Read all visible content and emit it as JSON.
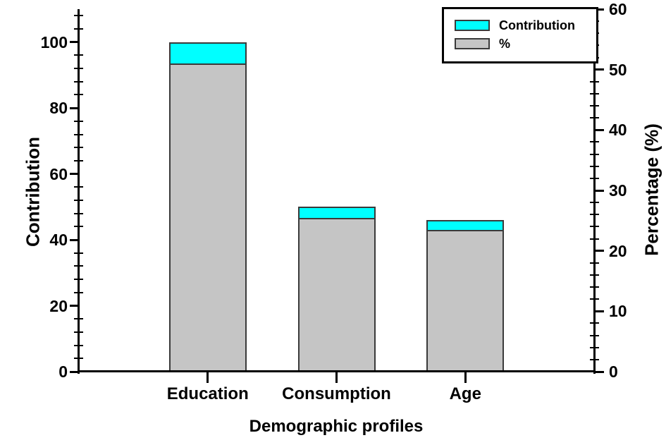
{
  "chart_data": {
    "type": "bar",
    "title": "",
    "xlabel": "Demographic profiles",
    "ylabel_left": "Contribution",
    "ylabel_right": "Percentage (%)",
    "categories": [
      "Education",
      "Consumption",
      "Age"
    ],
    "series": [
      {
        "name": "Contribution",
        "axis": "left",
        "color": "#00FFFF",
        "values": [
          100,
          50,
          46
        ]
      },
      {
        "name": "%",
        "axis": "right",
        "color": "#C5C5C5",
        "values": [
          51,
          25.5,
          23.5
        ]
      }
    ],
    "left_axis": {
      "min": 0,
      "max": 110,
      "major_ticks": [
        0,
        20,
        40,
        60,
        80,
        100
      ],
      "minor_step": 4
    },
    "right_axis": {
      "min": 0,
      "max": 60,
      "major_ticks": [
        0,
        10,
        20,
        30,
        40,
        50,
        60
      ],
      "minor_step": 2
    },
    "legend_position": "top-right",
    "grid": "off",
    "bar_style": {
      "border_color": "#3a3a3a",
      "note": "gray % segment (right axis) drawn in front of full-height cyan Contribution bar (left axis), cyan visible as top cap"
    },
    "legend": {
      "items": [
        {
          "label": "Contribution",
          "color": "#00FFFF"
        },
        {
          "label": "%",
          "color": "#C5C5C5"
        }
      ]
    }
  }
}
